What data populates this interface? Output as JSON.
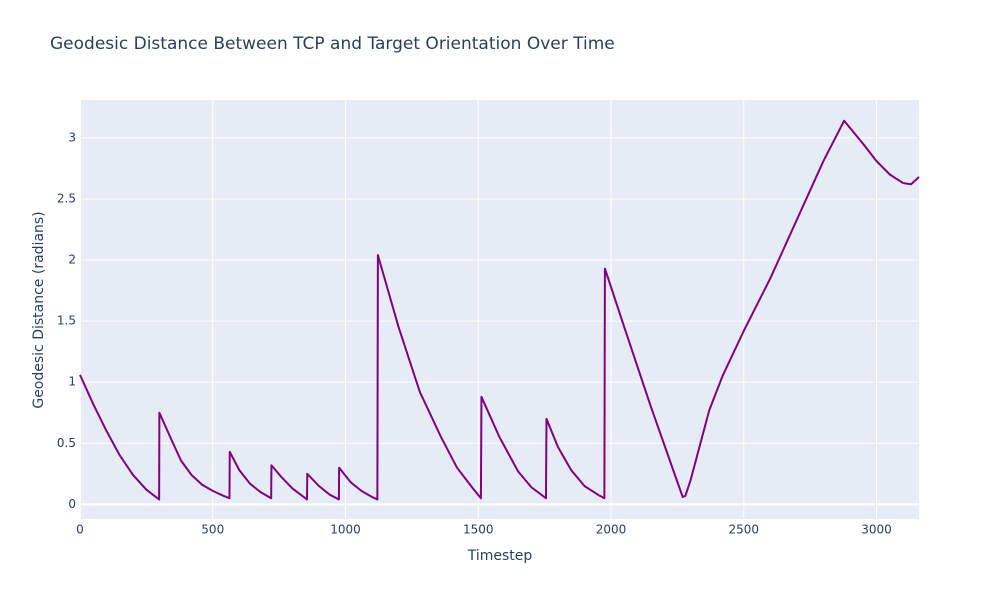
{
  "chart_data": {
    "type": "line",
    "title": "Geodesic Distance Between TCP and Target Orientation Over Time",
    "xlabel": "Timestep",
    "ylabel": "Geodesic Distance (radians)",
    "x": [
      0,
      50,
      100,
      150,
      200,
      250,
      298,
      299,
      340,
      380,
      420,
      460,
      500,
      540,
      563,
      564,
      600,
      640,
      680,
      720,
      721,
      760,
      800,
      855,
      856,
      900,
      940,
      975,
      976,
      1020,
      1060,
      1100,
      1120,
      1122,
      1200,
      1280,
      1360,
      1420,
      1480,
      1510,
      1512,
      1580,
      1650,
      1700,
      1755,
      1757,
      1800,
      1850,
      1900,
      1950,
      1975,
      1977,
      2050,
      2150,
      2270,
      2280,
      2300,
      2370,
      2420,
      2500,
      2600,
      2700,
      2800,
      2878,
      2950,
      3000,
      3050,
      3100,
      3130,
      3160
    ],
    "values": [
      1.06,
      0.82,
      0.6,
      0.4,
      0.24,
      0.12,
      0.04,
      0.75,
      0.55,
      0.36,
      0.24,
      0.16,
      0.11,
      0.07,
      0.05,
      0.43,
      0.28,
      0.17,
      0.1,
      0.05,
      0.32,
      0.22,
      0.13,
      0.04,
      0.25,
      0.15,
      0.08,
      0.04,
      0.3,
      0.18,
      0.11,
      0.06,
      0.04,
      2.04,
      1.45,
      0.92,
      0.55,
      0.3,
      0.13,
      0.05,
      0.88,
      0.55,
      0.27,
      0.14,
      0.05,
      0.7,
      0.47,
      0.28,
      0.15,
      0.08,
      0.05,
      1.93,
      1.45,
      0.8,
      0.06,
      0.07,
      0.2,
      0.77,
      1.05,
      1.42,
      1.85,
      2.33,
      2.81,
      3.14,
      2.95,
      2.81,
      2.7,
      2.63,
      2.62,
      2.68
    ],
    "color": "#800080",
    "xlim": [
      0,
      3160
    ],
    "ylim": [
      -0.12,
      3.31
    ],
    "xticks": [
      0,
      500,
      1000,
      1500,
      2000,
      2500,
      3000
    ],
    "yticks": [
      0,
      0.5,
      1,
      1.5,
      2,
      2.5,
      3
    ],
    "grid": true
  }
}
